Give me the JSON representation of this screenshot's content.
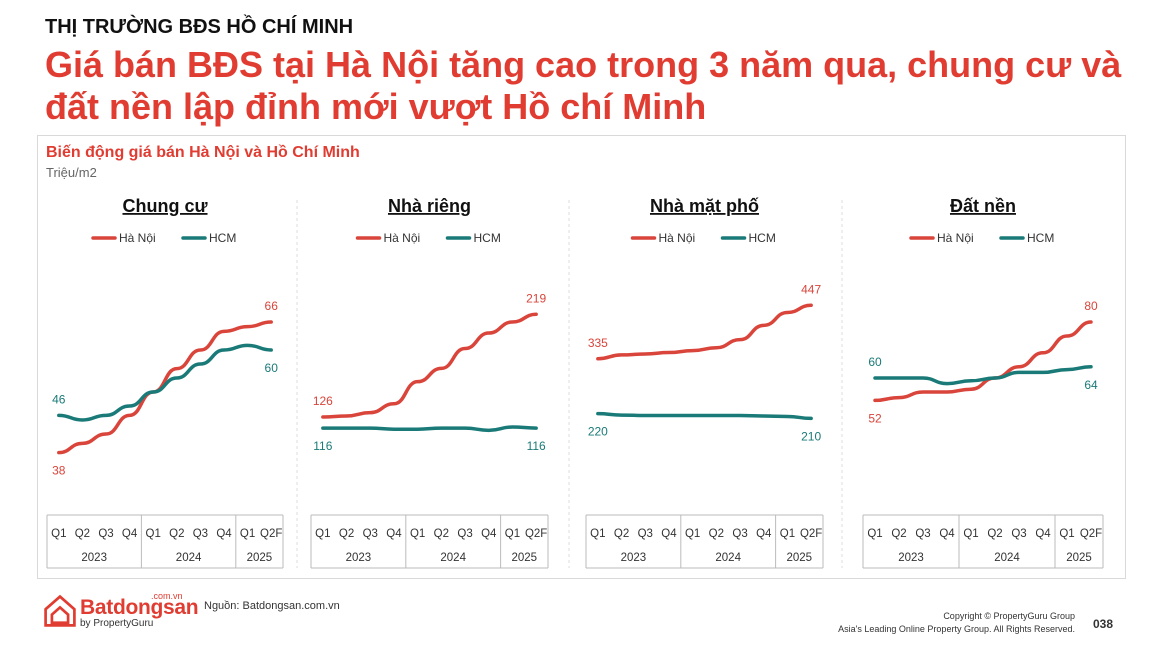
{
  "header": {
    "kicker": "THỊ TRƯỜNG BĐS HỒ CHÍ MINH",
    "headline": "Giá bán BĐS tại Hà Nội tăng cao trong 3 năm qua, chung cư và đất nền lập đỉnh mới vượt Hồ chí Minh"
  },
  "chart_data": [
    {
      "type": "line",
      "title": "Chung cư",
      "categories": [
        "Q1",
        "Q2",
        "Q3",
        "Q4",
        "Q1",
        "Q2",
        "Q3",
        "Q4",
        "Q1",
        "Q2F"
      ],
      "year_groups": [
        {
          "label": "2023",
          "span": 4
        },
        {
          "label": "2024",
          "span": 4
        },
        {
          "label": "2025",
          "span": 2
        }
      ],
      "series": [
        {
          "name": "Hà Nội",
          "color": "#d9453b",
          "values": [
            38,
            40,
            42,
            46,
            51,
            56,
            60,
            64,
            65,
            66
          ],
          "labels": {
            "0": "38",
            "9": "66"
          }
        },
        {
          "name": "HCM",
          "color": "#1a7a78",
          "values": [
            46,
            45,
            46,
            48,
            51,
            54,
            57,
            60,
            61,
            60
          ],
          "labels": {
            "0": "46",
            "9": "60"
          }
        }
      ],
      "ylim": [
        30,
        75
      ]
    },
    {
      "type": "line",
      "title": "Nhà riêng",
      "categories": [
        "Q1",
        "Q2",
        "Q3",
        "Q4",
        "Q1",
        "Q2",
        "Q3",
        "Q4",
        "Q1",
        "Q2F"
      ],
      "year_groups": [
        {
          "label": "2023",
          "span": 4
        },
        {
          "label": "2024",
          "span": 4
        },
        {
          "label": "2025",
          "span": 2
        }
      ],
      "series": [
        {
          "name": "Hà Nội",
          "color": "#d9453b",
          "values": [
            126,
            127,
            130,
            138,
            158,
            170,
            188,
            202,
            212,
            219
          ],
          "labels": {
            "0": "126",
            "9": "219"
          }
        },
        {
          "name": "HCM",
          "color": "#1a7a78",
          "values": [
            116,
            116,
            116,
            115,
            115,
            116,
            116,
            114,
            117,
            116
          ],
          "labels": {
            "0": "116",
            "9": "116"
          }
        }
      ],
      "ylim": [
        60,
        250
      ]
    },
    {
      "type": "line",
      "title": "Nhà mặt phố",
      "categories": [
        "Q1",
        "Q2",
        "Q3",
        "Q4",
        "Q1",
        "Q2",
        "Q3",
        "Q4",
        "Q1",
        "Q2F"
      ],
      "year_groups": [
        {
          "label": "2023",
          "span": 4
        },
        {
          "label": "2024",
          "span": 4
        },
        {
          "label": "2025",
          "span": 2
        }
      ],
      "series": [
        {
          "name": "Hà Nội",
          "color": "#d9453b",
          "values": [
            335,
            343,
            345,
            348,
            352,
            358,
            375,
            405,
            432,
            447
          ],
          "labels": {
            "0": "335",
            "9": "447"
          }
        },
        {
          "name": "HCM",
          "color": "#1a7a78",
          "values": [
            220,
            217,
            216,
            216,
            216,
            216,
            216,
            215,
            214,
            210
          ],
          "labels": {
            "0": "220",
            "9": "210"
          }
        }
      ],
      "ylim": [
        60,
        500
      ]
    },
    {
      "type": "line",
      "title": "Đất nền",
      "categories": [
        "Q1",
        "Q2",
        "Q3",
        "Q4",
        "Q1",
        "Q2",
        "Q3",
        "Q4",
        "Q1",
        "Q2F"
      ],
      "year_groups": [
        {
          "label": "2023",
          "span": 4
        },
        {
          "label": "2024",
          "span": 4
        },
        {
          "label": "2025",
          "span": 2
        }
      ],
      "series": [
        {
          "name": "Hà Nội",
          "color": "#d9453b",
          "values": [
            52,
            53,
            55,
            55,
            56,
            60,
            64,
            69,
            75,
            80
          ],
          "labels": {
            "0": "52",
            "9": "80"
          }
        },
        {
          "name": "HCM",
          "color": "#1a7a78",
          "values": [
            60,
            60,
            60,
            58,
            59,
            60,
            62,
            62,
            63,
            64
          ],
          "labels": {
            "0": "60",
            "9": "64"
          }
        }
      ],
      "ylim": [
        20,
        95
      ]
    }
  ],
  "chart_section": {
    "title": "Biến động giá bán Hà Nội và Hồ Chí Minh",
    "unit": "Triệu/m2"
  },
  "footer": {
    "logo_main": "Batdongsan",
    "logo_com": ".com.vn",
    "logo_by": "by PropertyGuru",
    "source": "Nguồn: Batdongsan.com.vn",
    "copyright_1": "Copyright © PropertyGuru Group",
    "copyright_2": "Asia's Leading Online Property Group. All Rights Reserved.",
    "page": "038"
  }
}
